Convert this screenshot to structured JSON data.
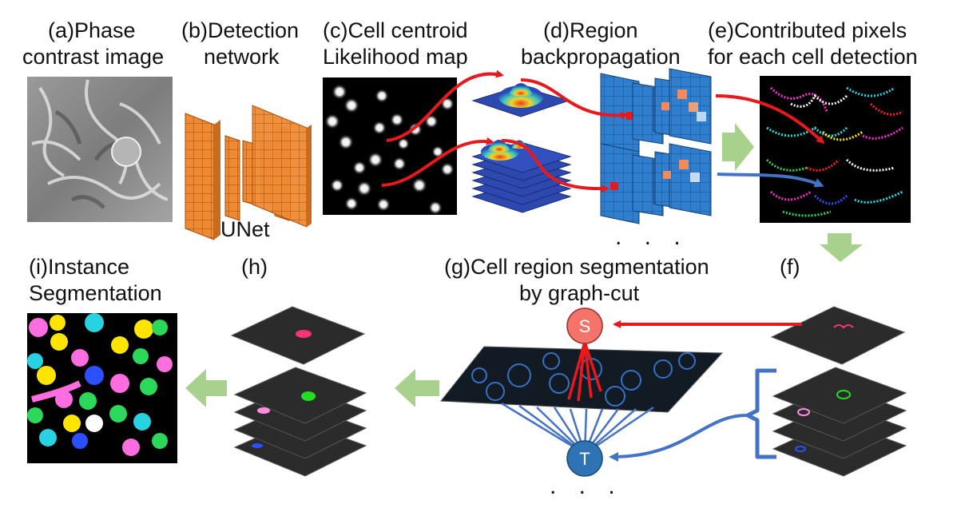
{
  "labels": {
    "a_line1": "(a)Phase",
    "a_line2": "contrast image",
    "b_line1": "(b)Detection",
    "b_line2": "network",
    "b_unet": "UNet",
    "c_line1": "(c)Cell centroid",
    "c_line2": "Likelihood map",
    "d_line1": "(d)Region",
    "d_line2": "backpropagation",
    "e_line1": "(e)Contributed pixels",
    "e_line2": "for each cell detection",
    "f_label": "(f)",
    "g_line1": "(g)Cell region segmentation",
    "g_line2": "by graph-cut",
    "h_label": "(h)",
    "i_line1": "(i)Instance",
    "i_line2": "Segmentation"
  },
  "nodes": {
    "source": "S",
    "sink": "T"
  },
  "ellipsis": ". . .",
  "colors": {
    "arrow_red": "#e8191c",
    "arrow_blue": "#4472c4",
    "block_arrow": "#a9d18e",
    "unet_orange": "#f08a32",
    "grid_blue": "#2f7fd0",
    "node_s": "#f4736a",
    "node_t": "#2e74b5",
    "layer_dark": "#2b2b2b"
  }
}
